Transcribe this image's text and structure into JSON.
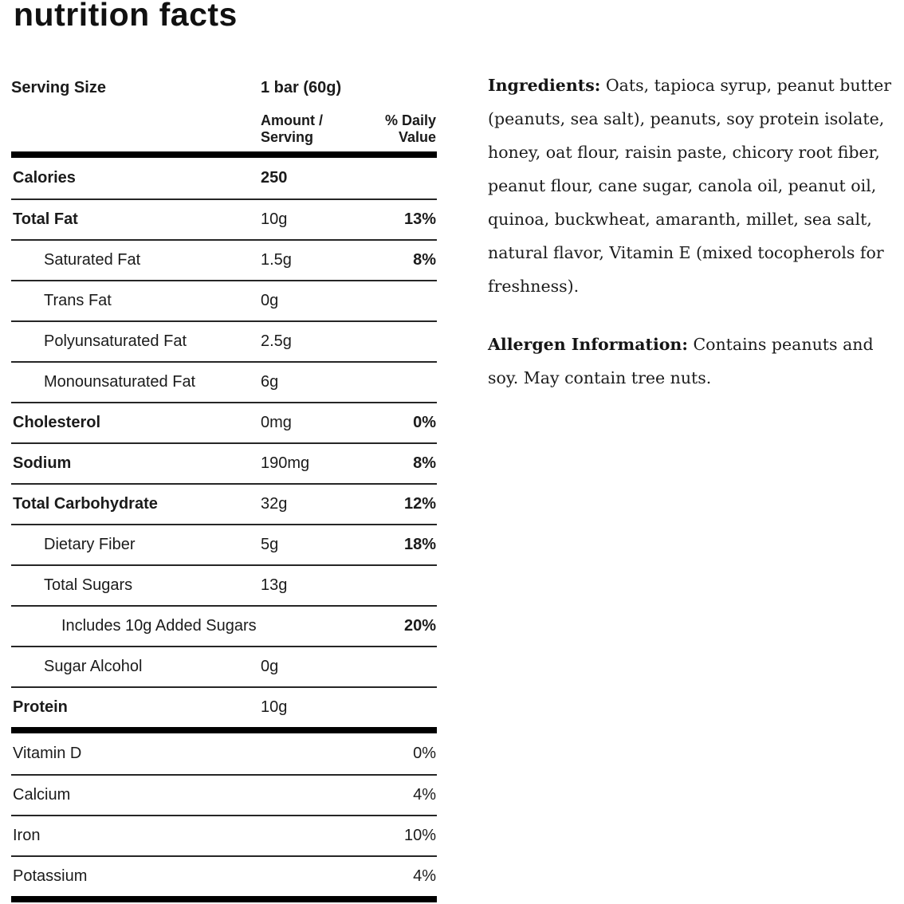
{
  "page": {
    "title": "nutrition facts"
  },
  "colors": {
    "background": "#ffffff",
    "text": "#1b1b1b",
    "thin_rule": "#262626",
    "thick_rule": "#000000"
  },
  "table": {
    "serving_size_label": "Serving Size",
    "serving_size_value": "1 bar (60g)",
    "col_amount_header": "Amount /\nServing",
    "col_dv_header": "% Daily\nValue",
    "rows": [
      {
        "label": "Calories",
        "amount": "250",
        "dv": "",
        "label_bold": true,
        "amount_bold": true,
        "dv_bold": false,
        "indent": 0
      },
      {
        "label": "Total Fat",
        "amount": "10g",
        "dv": "13%",
        "label_bold": true,
        "amount_bold": false,
        "dv_bold": true,
        "indent": 0
      },
      {
        "label": "Saturated Fat",
        "amount": "1.5g",
        "dv": "8%",
        "label_bold": false,
        "amount_bold": false,
        "dv_bold": true,
        "indent": 1
      },
      {
        "label": "Trans Fat",
        "amount": "0g",
        "dv": "",
        "label_bold": false,
        "amount_bold": false,
        "dv_bold": false,
        "indent": 1
      },
      {
        "label": "Polyunsaturated Fat",
        "amount": "2.5g",
        "dv": "",
        "label_bold": false,
        "amount_bold": false,
        "dv_bold": false,
        "indent": 1
      },
      {
        "label": "Monounsaturated Fat",
        "amount": "6g",
        "dv": "",
        "label_bold": false,
        "amount_bold": false,
        "dv_bold": false,
        "indent": 1
      },
      {
        "label": "Cholesterol",
        "amount": "0mg",
        "dv": "0%",
        "label_bold": true,
        "amount_bold": false,
        "dv_bold": true,
        "indent": 0
      },
      {
        "label": "Sodium",
        "amount": "190mg",
        "dv": "8%",
        "label_bold": true,
        "amount_bold": false,
        "dv_bold": true,
        "indent": 0
      },
      {
        "label": "Total Carbohydrate",
        "amount": "32g",
        "dv": "12%",
        "label_bold": true,
        "amount_bold": false,
        "dv_bold": true,
        "indent": 0
      },
      {
        "label": "Dietary Fiber",
        "amount": "5g",
        "dv": "18%",
        "label_bold": false,
        "amount_bold": false,
        "dv_bold": true,
        "indent": 1
      },
      {
        "label": "Total Sugars",
        "amount": "13g",
        "dv": "",
        "label_bold": false,
        "amount_bold": false,
        "dv_bold": false,
        "indent": 1
      },
      {
        "label": "Includes 10g Added Sugars",
        "amount": "",
        "dv": "20%",
        "label_bold": false,
        "amount_bold": false,
        "dv_bold": true,
        "indent": 2
      },
      {
        "label": "Sugar Alcohol",
        "amount": "0g",
        "dv": "",
        "label_bold": false,
        "amount_bold": false,
        "dv_bold": false,
        "indent": 1
      },
      {
        "label": "Protein",
        "amount": "10g",
        "dv": "",
        "label_bold": true,
        "amount_bold": false,
        "dv_bold": false,
        "indent": 0
      }
    ],
    "vitamin_rows": [
      {
        "label": "Vitamin D",
        "amount": "",
        "dv": "0%",
        "label_bold": false,
        "amount_bold": false,
        "dv_bold": false,
        "indent": 0
      },
      {
        "label": "Calcium",
        "amount": "",
        "dv": "4%",
        "label_bold": false,
        "amount_bold": false,
        "dv_bold": false,
        "indent": 0
      },
      {
        "label": "Iron",
        "amount": "",
        "dv": "10%",
        "label_bold": false,
        "amount_bold": false,
        "dv_bold": false,
        "indent": 0
      },
      {
        "label": "Potassium",
        "amount": "",
        "dv": "4%",
        "label_bold": false,
        "amount_bold": false,
        "dv_bold": false,
        "indent": 0
      }
    ]
  },
  "ingredients": {
    "lead": "Ingredients:",
    "text": "Oats, tapioca syrup, peanut butter (peanuts, sea salt), peanuts, soy protein isolate, honey, oat flour, raisin paste, chicory root fiber, peanut flour, cane sugar, canola oil, peanut oil, quinoa, buckwheat, amaranth, millet, sea salt, natural flavor, Vitamin E (mixed tocopherols for freshness)."
  },
  "allergen": {
    "lead": "Allergen Information:",
    "text": "Contains peanuts and soy. May contain tree nuts."
  }
}
